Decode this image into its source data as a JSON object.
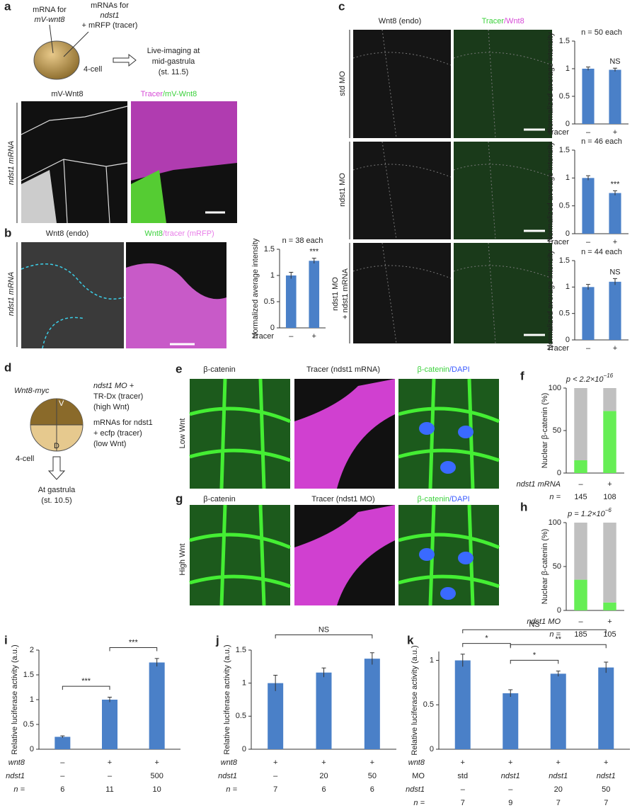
{
  "panels": {
    "a": {
      "letter": "a",
      "mrna_for": "mRNA for",
      "mv_wnt8": "mV-wnt8",
      "mrnas_for": "mRNAs for",
      "ndst1": "ndst1",
      "tracer": "+ mRFP (tracer)",
      "stage": "4-cell",
      "live1": "Live-imaging at",
      "live2": "mid-gastrula",
      "live3": "(st. 11.5)",
      "col1": "mV-Wnt8",
      "col2a": "Tracer",
      "col2b": "/mV-Wnt8",
      "side": "ndst1 mRNA"
    },
    "b": {
      "letter": "b",
      "col1": "Wnt8 (endo)",
      "col2a": "Wnt8",
      "col2b": "/tracer (mRFP)",
      "side": "ndst1 mRNA"
    },
    "c": {
      "letter": "c",
      "col1": "Wnt8 (endo)",
      "col2a": "Tracer",
      "col2b": "/Wnt8",
      "side1": "std MO",
      "side2": "ndst1 MO",
      "side3a": "ndst1 MO",
      "side3b": "+ ndst1 mRNA"
    },
    "d": {
      "letter": "d",
      "wnt8myc": "Wnt8-myc",
      "v": "V",
      "dd": "D",
      "mo1": "ndst1 MO +",
      "mo2": "TR-Dx (tracer)",
      "mo3": "(high Wnt)",
      "mr1": "mRNAs for ndst1",
      "mr2": "+ ecfp (tracer)",
      "mr3": "(low Wnt)",
      "stage": "4-cell",
      "at1": "At gastrula",
      "at2": "(st. 10.5)"
    },
    "e": {
      "letter": "e",
      "col1": "β-catenin",
      "col2": "Tracer (ndst1 mRNA)",
      "col3a": "β-catenin",
      "col3b": "/DAPI",
      "side": "Low Wnt"
    },
    "g": {
      "letter": "g",
      "col1": "β-catenin",
      "col2": "Tracer (ndst1 MO)",
      "col3a": "β-catenin",
      "col3b": "/DAPI",
      "side": "High Wnt"
    }
  },
  "chart_data": [
    {
      "type": "bar",
      "title": "n = 38 each",
      "ylabel": "Normalized average intensity",
      "xlabel": "Tracer",
      "categories": [
        "–",
        "+"
      ],
      "values": [
        1,
        1.28
      ],
      "errors": [
        0.06,
        0.05
      ],
      "color": "#4a80c8",
      "annotations": [
        {
          "index": 1,
          "text": "***"
        }
      ],
      "ylim": [
        0,
        1.5
      ],
      "yticks": [
        0,
        0.5,
        1,
        1.5
      ]
    },
    {
      "type": "bar",
      "title": "n = 50 each",
      "ylabel": "Normalized average intensity",
      "xlabel": "Tracer",
      "categories": [
        "–",
        "+"
      ],
      "values": [
        1,
        0.98
      ],
      "errors": [
        0.03,
        0.03
      ],
      "color": "#4a80c8",
      "annotations": [
        {
          "index": 1,
          "text": "NS"
        }
      ],
      "ylim": [
        0,
        1.5
      ],
      "yticks": [
        0,
        0.5,
        1,
        1.5
      ]
    },
    {
      "type": "bar",
      "title": "n = 46 each",
      "ylabel": "Normalized average intensity",
      "xlabel": "Tracer",
      "categories": [
        "–",
        "+"
      ],
      "values": [
        1,
        0.73
      ],
      "errors": [
        0.04,
        0.04
      ],
      "color": "#4a80c8",
      "annotations": [
        {
          "index": 1,
          "text": "***"
        }
      ],
      "ylim": [
        0,
        1.5
      ],
      "yticks": [
        0,
        0.5,
        1,
        1.5
      ]
    },
    {
      "type": "bar",
      "title": "n = 44 each",
      "ylabel": "Normalized average intensity",
      "xlabel": "Tracer",
      "categories": [
        "–",
        "+"
      ],
      "values": [
        1,
        1.1
      ],
      "errors": [
        0.05,
        0.06
      ],
      "color": "#4a80c8",
      "annotations": [
        {
          "index": 1,
          "text": "NS"
        }
      ],
      "ylim": [
        0,
        1.5
      ],
      "yticks": [
        0,
        0.5,
        1,
        1.5
      ]
    },
    {
      "type": "stacked_bar",
      "panel": "f",
      "title": "p < 2.2×10",
      "title_exponent": "−16",
      "ylabel": "Nuclear β-catenin (%)",
      "xlabel": "ndst1 mRNA",
      "categories": [
        "–",
        "+"
      ],
      "n_label": "n =",
      "n": [
        145,
        108
      ],
      "series": [
        {
          "color": "#66ee55",
          "values": [
            15,
            73
          ]
        },
        {
          "color": "#c0c0c0",
          "values": [
            85,
            27
          ]
        }
      ],
      "ylim": [
        0,
        100
      ],
      "yticks": [
        0,
        50,
        100
      ]
    },
    {
      "type": "stacked_bar",
      "panel": "h",
      "title": "p = 1.2×10",
      "title_exponent": "−6",
      "ylabel": "Nuclear β-catenin (%)",
      "xlabel": "ndst1 MO",
      "categories": [
        "–",
        "+"
      ],
      "n_label": "n =",
      "n": [
        185,
        105
      ],
      "series": [
        {
          "color": "#66ee55",
          "values": [
            35,
            9
          ]
        },
        {
          "color": "#c0c0c0",
          "values": [
            65,
            91
          ]
        }
      ],
      "ylim": [
        0,
        100
      ],
      "yticks": [
        0,
        50,
        100
      ]
    },
    {
      "type": "bar",
      "panel": "i",
      "ylabel": "Relative luciferase activity (a.u.)",
      "values": [
        0.25,
        1.0,
        1.75
      ],
      "errors": [
        0.02,
        0.05,
        0.08
      ],
      "color": "#4a80c8",
      "brackets": [
        {
          "from": 0,
          "to": 1,
          "text": "***"
        },
        {
          "from": 1,
          "to": 2,
          "text": "***"
        }
      ],
      "rows": [
        {
          "label": "wnt8",
          "values": [
            "–",
            "+",
            "+"
          ]
        },
        {
          "label": "ndst1",
          "values": [
            "–",
            "–",
            "500"
          ]
        },
        {
          "label": "n =",
          "values": [
            6,
            11,
            10
          ]
        }
      ],
      "ylim": [
        0,
        2
      ],
      "yticks": [
        0,
        0.5,
        1,
        1.5,
        2
      ]
    },
    {
      "type": "bar",
      "panel": "j",
      "ylabel": "Relative luciferase activity (a.u.)",
      "values": [
        1.0,
        1.16,
        1.37
      ],
      "errors": [
        0.12,
        0.07,
        0.09
      ],
      "color": "#4a80c8",
      "brackets": [
        {
          "from": 0,
          "to": 2,
          "text": "NS"
        }
      ],
      "rows": [
        {
          "label": "wnt8",
          "values": [
            "+",
            "+",
            "+"
          ]
        },
        {
          "label": "ndst1",
          "values": [
            "–",
            "20",
            "50"
          ]
        },
        {
          "label": "n =",
          "values": [
            7,
            6,
            6
          ]
        }
      ],
      "ylim": [
        0,
        1.5
      ],
      "yticks": [
        0,
        0.5,
        1,
        1.5
      ]
    },
    {
      "type": "bar",
      "panel": "k",
      "ylabel": "Relative luciferase activity (a.u.)",
      "values": [
        1.0,
        0.63,
        0.85,
        0.92
      ],
      "errors": [
        0.07,
        0.04,
        0.03,
        0.06
      ],
      "color": "#4a80c8",
      "brackets": [
        {
          "from": 0,
          "to": 1,
          "text": "*"
        },
        {
          "from": 0,
          "to": 3,
          "text": "NS"
        },
        {
          "from": 1,
          "to": 2,
          "text": "*"
        },
        {
          "from": 1,
          "to": 3,
          "text": "**"
        }
      ],
      "rows": [
        {
          "label": "wnt8",
          "values": [
            "+",
            "+",
            "+",
            "+"
          ]
        },
        {
          "label": "MO",
          "values": [
            "std",
            "ndst1",
            "ndst1",
            "ndst1"
          ]
        },
        {
          "label": "ndst1",
          "values": [
            "–",
            "–",
            "20",
            "50"
          ]
        },
        {
          "label": "n =",
          "values": [
            7,
            9,
            7,
            7
          ]
        }
      ],
      "ylim": [
        0,
        1.1
      ],
      "yticks": [
        0,
        0.5,
        1
      ]
    }
  ]
}
